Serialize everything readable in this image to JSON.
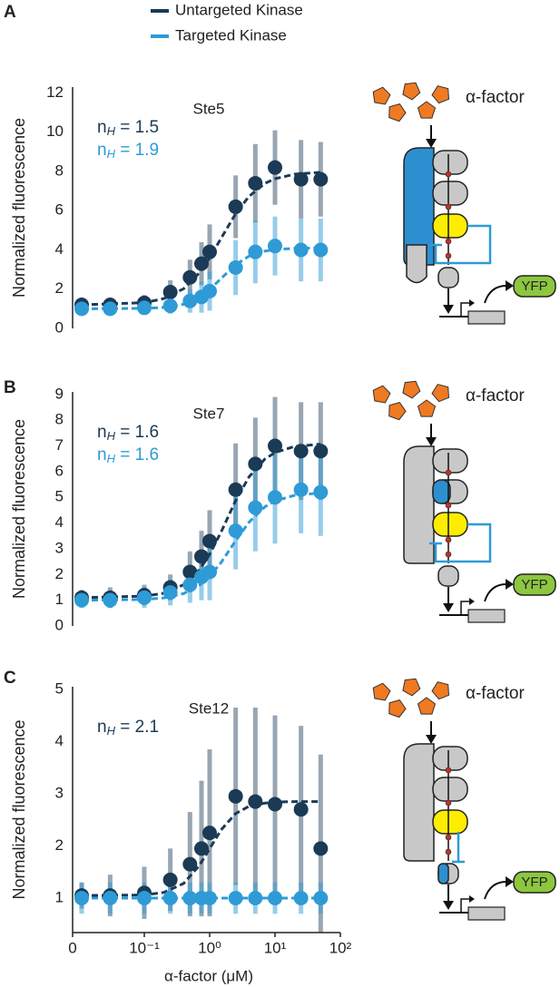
{
  "legend": [
    {
      "name": "Untargeted Kinase",
      "color": "#1b3a55"
    },
    {
      "name": "Targeted Kinase",
      "color": "#2e9bd6"
    }
  ],
  "chart_data": [
    {
      "type": "scatter",
      "panel": "A",
      "title": "Ste5",
      "ylabel": "Normalized fluorescence",
      "xscale": "log",
      "xlim": [
        0.008,
        100
      ],
      "ylim": [
        0,
        12.3
      ],
      "yticks": [
        0,
        2,
        4,
        6,
        8,
        10,
        12
      ],
      "x": [
        0,
        0.03,
        0.1,
        0.25,
        0.5,
        0.75,
        1,
        2.5,
        5,
        10,
        25,
        50
      ],
      "series": [
        {
          "color": "#1b3a55",
          "values": [
            1.2,
            1.2,
            1.3,
            1.85,
            2.6,
            3.3,
            3.9,
            6.2,
            7.4,
            8.2,
            7.6,
            7.6
          ],
          "errors": [
            0.3,
            0.3,
            0.4,
            0.6,
            0.9,
            1.1,
            1.4,
            1.6,
            2.0,
            1.9,
            2.0,
            1.9
          ],
          "fit": {
            "x": [
              0,
              0.1,
              0.2,
              0.4,
              0.7,
              1,
              1.5,
              2.5,
              4,
              7,
              10,
              20,
              50
            ],
            "values": [
              1.2,
              1.31,
              1.52,
              2.02,
              2.84,
              3.6,
              4.6,
              5.84,
              6.73,
              7.39,
              7.63,
              7.86,
              7.96
            ]
          }
        },
        {
          "color": "#2e9bd6",
          "values": [
            1.0,
            1.0,
            1.05,
            1.15,
            1.4,
            1.6,
            1.9,
            3.1,
            3.9,
            4.2,
            4.0,
            4.0
          ],
          "errors": [
            0.2,
            0.2,
            0.3,
            0.4,
            0.6,
            0.8,
            1.0,
            1.4,
            1.6,
            1.5,
            1.6,
            1.6
          ],
          "fit": {
            "x": [
              0,
              0.1,
              0.2,
              0.4,
              0.7,
              1,
              1.5,
              2.5,
              4,
              7,
              10,
              20,
              50
            ],
            "values": [
              1.0,
              1.02,
              1.07,
              1.23,
              1.59,
              1.98,
              2.55,
              3.25,
              3.68,
              3.94,
              4.02,
              4.08,
              4.1
            ]
          }
        }
      ],
      "annotations": [
        {
          "symbol": "n",
          "subscript": "H",
          "text": " = 1.5",
          "color": "#1b3a55"
        },
        {
          "symbol": "n",
          "subscript": "H",
          "text": " = 1.9",
          "color": "#2e9bd6"
        }
      ]
    },
    {
      "type": "scatter",
      "panel": "B",
      "title": "Ste7",
      "ylabel": "Normalized fluorescence",
      "xscale": "log",
      "xlim": [
        0.008,
        100
      ],
      "ylim": [
        0,
        9.1
      ],
      "yticks": [
        0,
        1,
        2,
        3,
        4,
        5,
        6,
        7,
        8,
        9
      ],
      "x": [
        0,
        0.03,
        0.1,
        0.25,
        0.5,
        0.75,
        1,
        2.5,
        5,
        10,
        25,
        50
      ],
      "series": [
        {
          "color": "#1b3a55",
          "values": [
            1.1,
            1.1,
            1.2,
            1.5,
            2.1,
            2.7,
            3.3,
            5.3,
            6.3,
            7.0,
            6.8,
            6.8
          ],
          "errors": [
            0.3,
            0.4,
            0.4,
            0.5,
            0.8,
            1.0,
            1.2,
            1.8,
            1.8,
            1.9,
            1.9,
            1.9
          ],
          "fit": {
            "x": [
              0,
              0.1,
              0.2,
              0.4,
              0.7,
              1,
              1.5,
              2.5,
              4,
              7,
              10,
              20,
              50
            ],
            "values": [
              1.1,
              1.16,
              1.27,
              1.6,
              2.18,
              2.79,
              3.66,
              4.87,
              5.79,
              6.49,
              6.74,
              6.98,
              7.07
            ]
          }
        },
        {
          "color": "#2e9bd6",
          "values": [
            1.0,
            1.0,
            1.1,
            1.3,
            1.6,
            1.9,
            2.1,
            3.7,
            4.6,
            5.0,
            5.3,
            5.2
          ],
          "errors": [
            0.3,
            0.3,
            0.4,
            0.5,
            0.7,
            0.9,
            1.1,
            1.5,
            1.7,
            1.8,
            1.7,
            1.7
          ],
          "fit": {
            "x": [
              0,
              0.1,
              0.2,
              0.4,
              0.7,
              1,
              1.5,
              2.5,
              4,
              7,
              10,
              20,
              50
            ],
            "values": [
              1.0,
              1.03,
              1.09,
              1.26,
              1.58,
              1.93,
              2.47,
              3.31,
              4.03,
              4.63,
              4.86,
              5.08,
              5.17
            ]
          }
        }
      ],
      "annotations": [
        {
          "symbol": "n",
          "subscript": "H",
          "text": " = 1.6",
          "color": "#1b3a55"
        },
        {
          "symbol": "n",
          "subscript": "H",
          "text": " = 1.6",
          "color": "#2e9bd6"
        }
      ]
    },
    {
      "type": "scatter",
      "panel": "C",
      "title": "Ste12",
      "ylabel": "Normalized fluorescence",
      "xlabel": "α-factor (μM)",
      "xscale": "log",
      "xlim": [
        0.008,
        100
      ],
      "ylim": [
        0.34,
        5.05
      ],
      "yticks": [
        1,
        2,
        3,
        4,
        5
      ],
      "xticks": [
        0,
        {
          "value": 0.1,
          "label": "10⁻¹"
        },
        {
          "value": 1,
          "label": "10⁰"
        },
        {
          "value": 10,
          "label": "10¹"
        },
        {
          "value": 100,
          "label": "10²"
        }
      ],
      "x": [
        0,
        0.03,
        0.1,
        0.25,
        0.5,
        0.75,
        1,
        2.5,
        5,
        10,
        25,
        50
      ],
      "series": [
        {
          "color": "#1b3a55",
          "values": [
            1.05,
            1.05,
            1.1,
            1.35,
            1.65,
            1.95,
            2.25,
            2.95,
            2.85,
            2.8,
            2.7,
            1.95
          ],
          "errors": [
            0.25,
            0.4,
            0.5,
            0.6,
            1.0,
            1.3,
            1.6,
            1.7,
            1.8,
            1.7,
            1.6,
            1.8
          ],
          "fit": {
            "x": [
              0,
              0.1,
              0.2,
              0.4,
              0.7,
              1,
              1.5,
              2.5,
              4,
              7,
              10,
              20,
              50
            ],
            "values": [
              1.05,
              1.06,
              1.11,
              1.28,
              1.63,
              1.95,
              2.31,
              2.62,
              2.76,
              2.82,
              2.84,
              2.85,
              2.85
            ]
          }
        },
        {
          "color": "#2e9bd6",
          "values": [
            1.0,
            1.0,
            1.0,
            1.0,
            1.0,
            1.0,
            1.0,
            1.0,
            1.0,
            1.0,
            1.0,
            1.0
          ],
          "errors": [
            0.3,
            0.3,
            0.3,
            0.3,
            0.3,
            0.3,
            0.3,
            0.3,
            0.3,
            0.3,
            0.3,
            0.3
          ],
          "fit": {
            "x": [
              0,
              0.1,
              1,
              10,
              50
            ],
            "values": [
              1.0,
              1.0,
              1.0,
              1.0,
              1.0
            ]
          }
        }
      ],
      "annotations": [
        {
          "symbol": "n",
          "subscript": "H",
          "text": " = 2.1",
          "color": "#1b3a55"
        }
      ]
    }
  ],
  "diagrams": [
    {
      "ligand": "α-factor",
      "reporter": "YFP"
    },
    {
      "ligand": "α-factor",
      "reporter": "YFP"
    },
    {
      "ligand": "α-factor",
      "reporter": "YFP"
    }
  ]
}
